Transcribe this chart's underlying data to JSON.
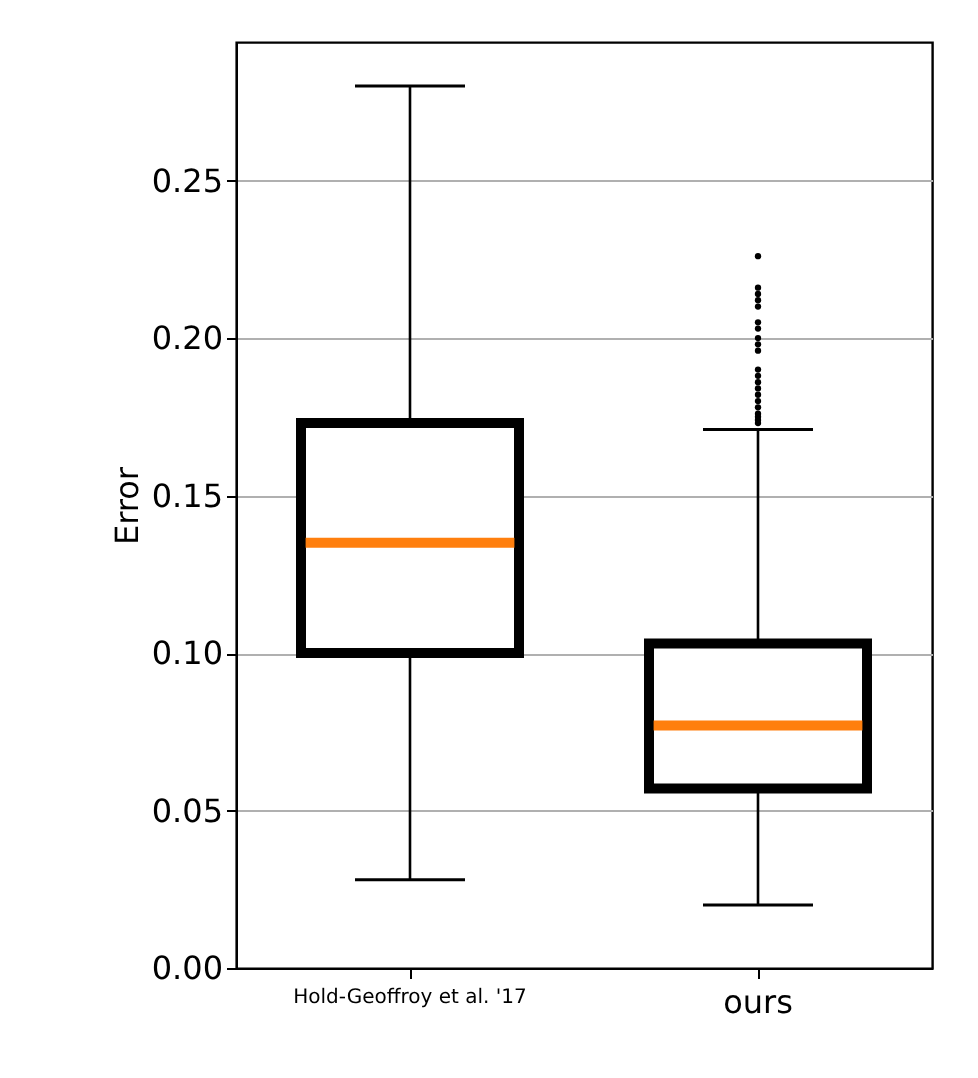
{
  "chart_data": {
    "type": "box",
    "ylabel": "Error",
    "categories": [
      "Hold-Geoffroy et al. '17",
      "ours"
    ],
    "ylim": [
      0,
      0.294
    ],
    "yticks": [
      {
        "value": 0,
        "label": "0.00"
      },
      0.05,
      {
        "value": 0.1,
        "label": "0.10"
      },
      0.15,
      {
        "value": 0.2,
        "label": "0.20"
      },
      0.25
    ],
    "grid": "y",
    "series": [
      {
        "color": "#000000",
        "boxes": [
          {
            "low": 0.028,
            "q1": 0.1,
            "median": 0.135,
            "q3": 0.173,
            "high": 0.28
          },
          {
            "low": 0.02,
            "q1": 0.057,
            "median": 0.077,
            "q3": 0.103,
            "high": 0.171,
            "outliers": [
              0.226,
              0.216,
              0.214,
              0.212,
              0.21,
              0.205,
              0.203,
              0.2,
              0.198,
              0.196,
              0.19,
              0.188,
              0.186,
              0.184,
              0.182,
              0.18,
              0.178,
              0.176,
              0.175,
              0.174,
              0.173
            ]
          }
        ]
      }
    ]
  }
}
